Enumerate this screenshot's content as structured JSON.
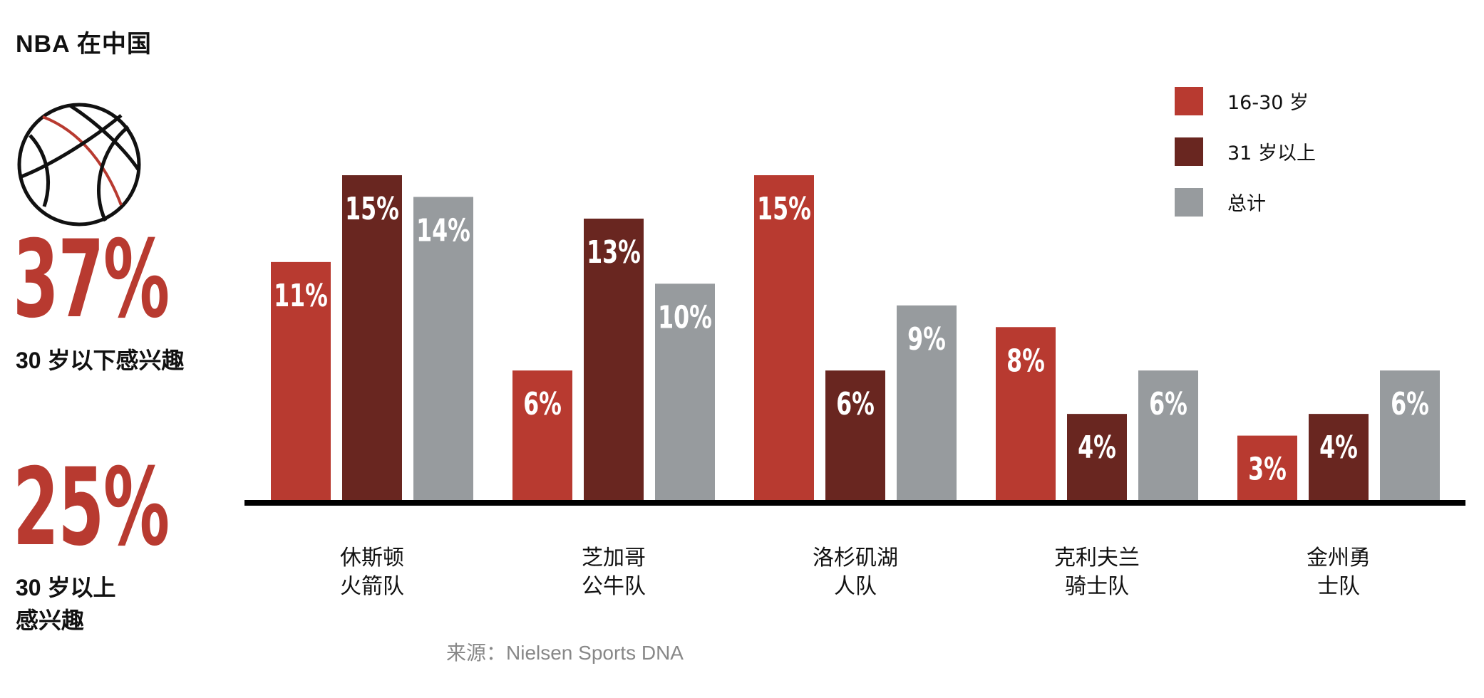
{
  "title": "NBA 在中国",
  "stats": [
    {
      "value": "37%",
      "caption": "30 岁以下感兴趣"
    },
    {
      "value": "25%",
      "caption": "30 岁以上\n感兴趣"
    }
  ],
  "source": "来源：Nielsen Sports DNA",
  "colors": {
    "accent": "#b83a30",
    "series_16_30": "#b83a30",
    "series_31_plus": "#692620",
    "series_total": "#979b9e"
  },
  "icons": [
    "basketball-icon"
  ],
  "chart_data": {
    "type": "bar",
    "categories": [
      [
        "休斯顿",
        "火箭队"
      ],
      [
        "芝加哥",
        "公牛队"
      ],
      [
        "洛杉矶湖",
        "人队"
      ],
      [
        "克利夫兰",
        "骑士队"
      ],
      [
        "金州勇",
        "士队"
      ]
    ],
    "series": [
      {
        "name": "16-30 岁",
        "values": [
          11,
          6,
          15,
          8,
          3
        ],
        "labels": [
          "11%",
          "6%",
          "15%",
          "8%",
          "3%"
        ],
        "color": "#b83a30"
      },
      {
        "name": "31 岁以上",
        "values": [
          15,
          13,
          6,
          4,
          4
        ],
        "labels": [
          "15%",
          "13%",
          "6%",
          "4%",
          "4%"
        ],
        "color": "#692620"
      },
      {
        "name": "总计",
        "values": [
          14,
          10,
          9,
          6,
          6
        ],
        "labels": [
          "14%",
          "10%",
          "9%",
          "6%",
          "6%"
        ],
        "color": "#979b9e"
      }
    ],
    "unit": "%",
    "ylim": [
      0,
      15
    ],
    "grid": false,
    "legend": "top-right"
  }
}
